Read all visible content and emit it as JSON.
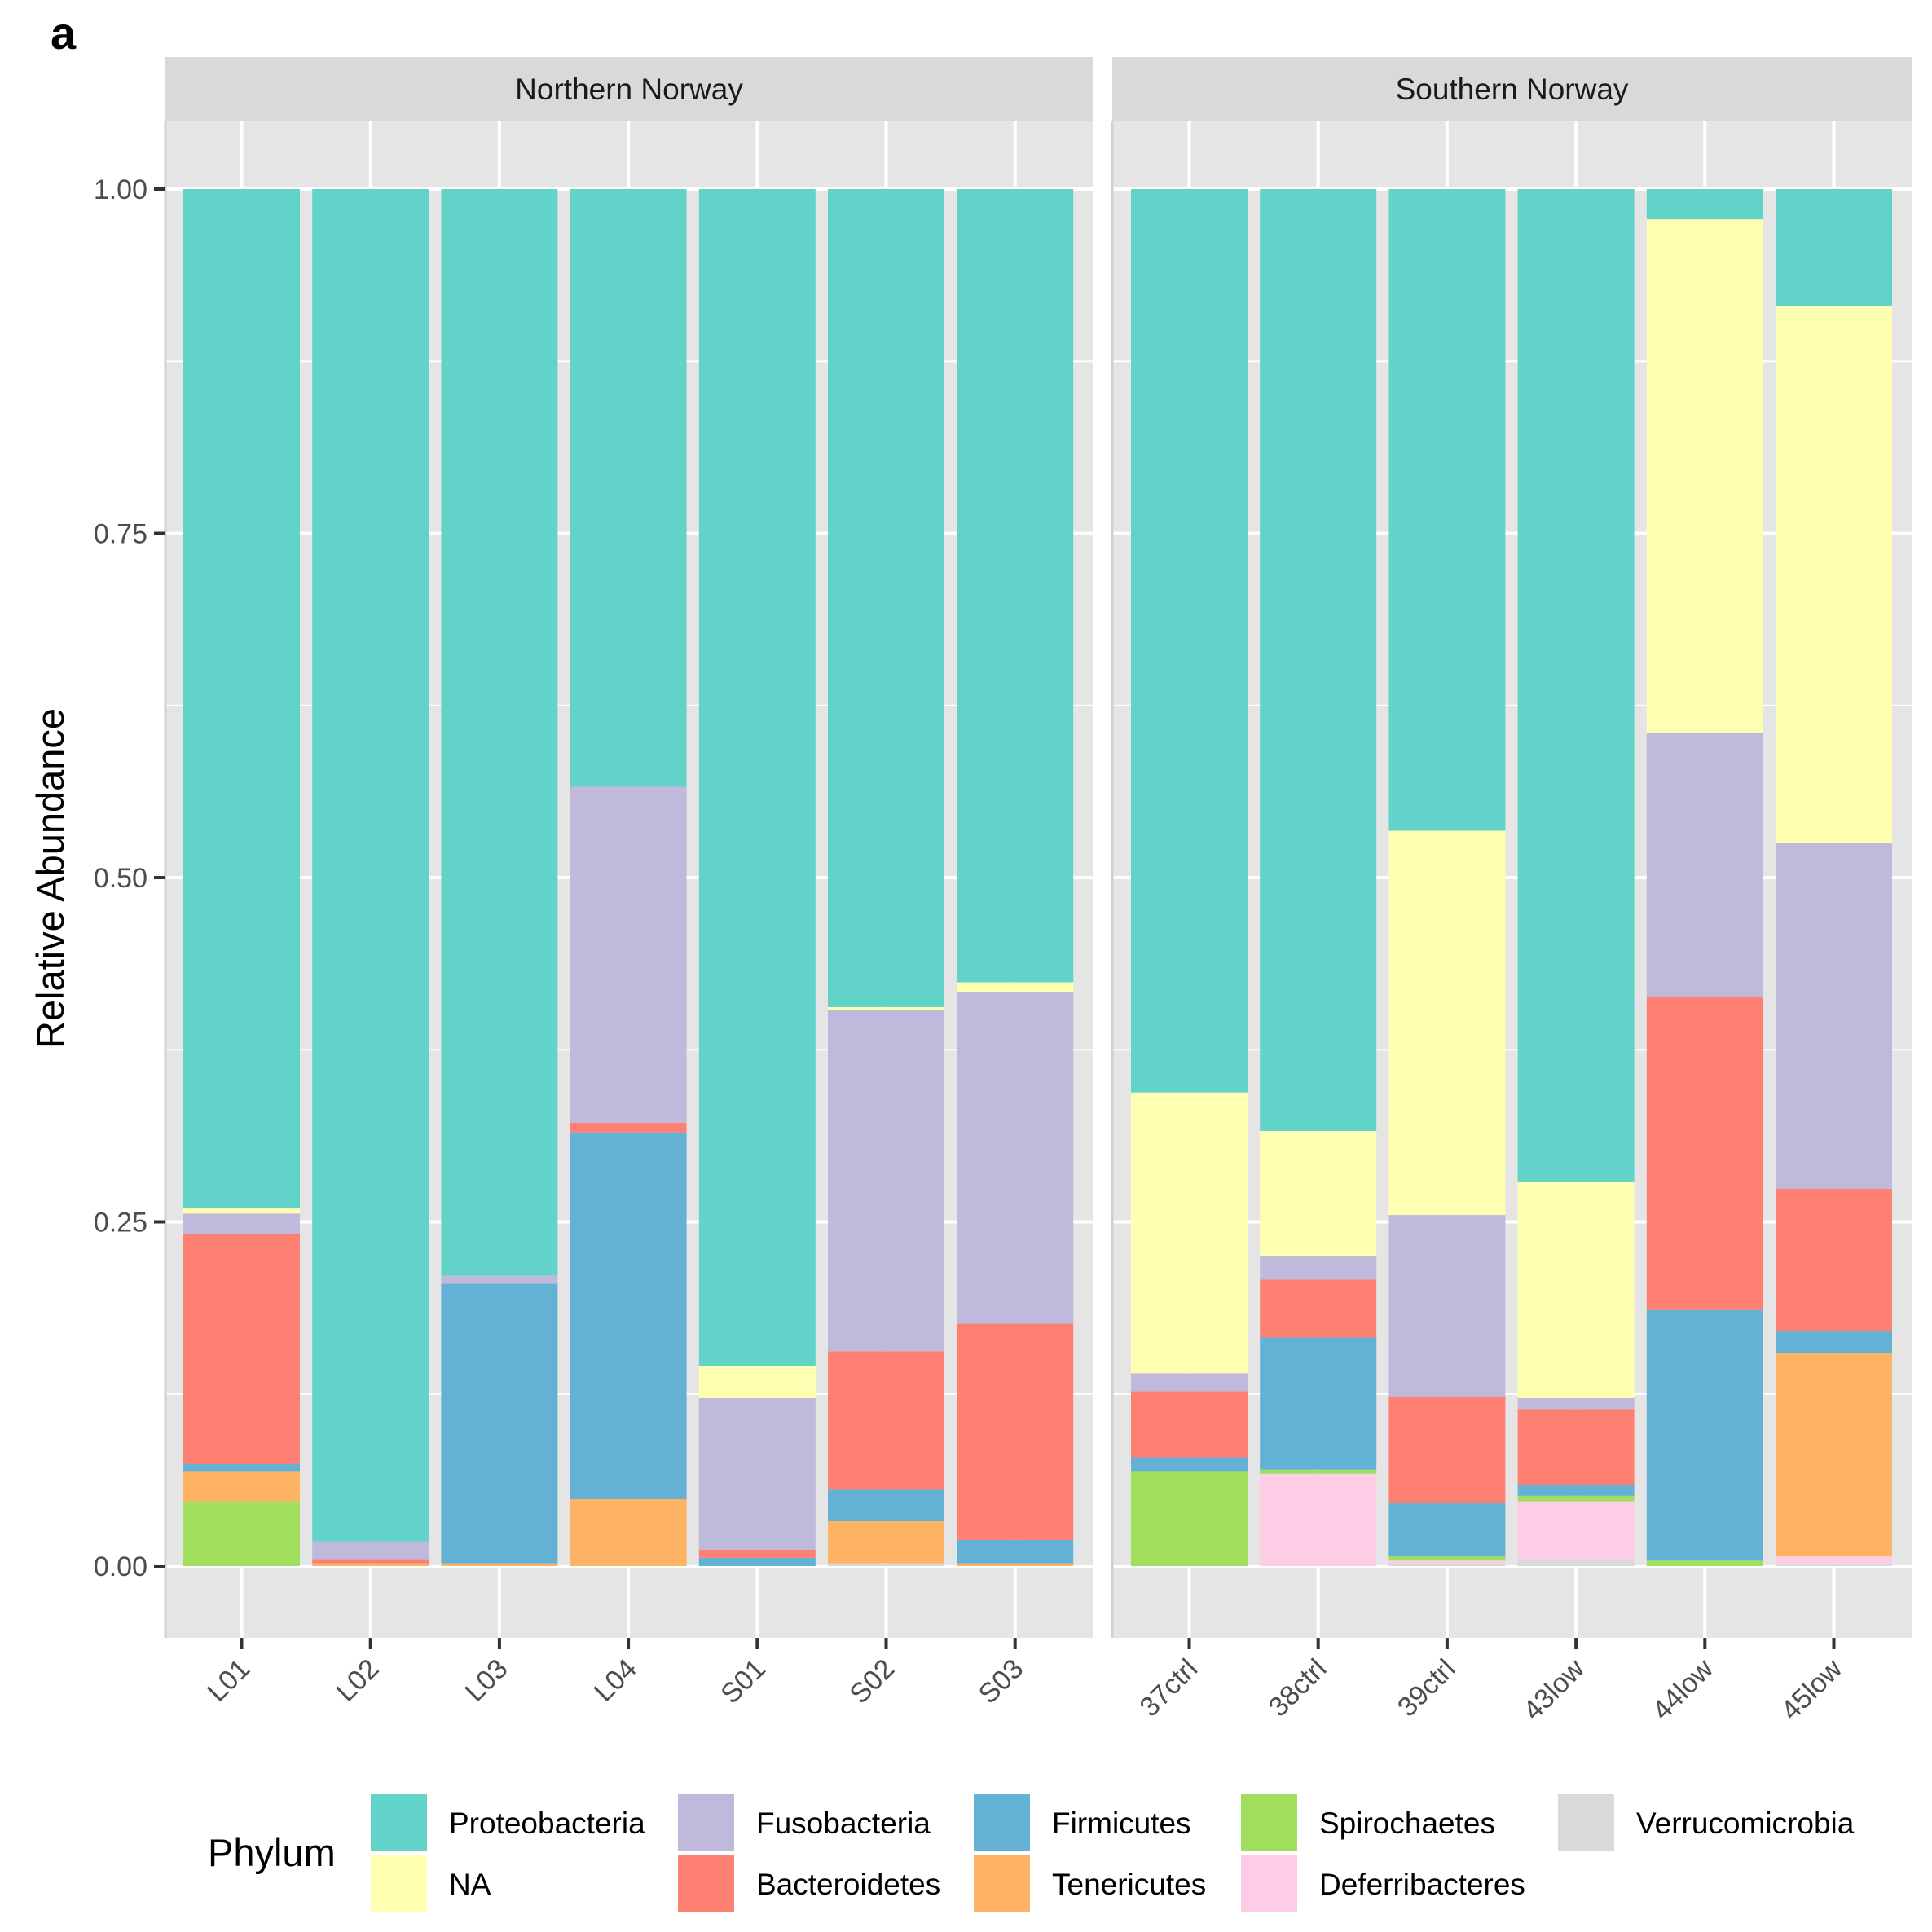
{
  "panel_label": "a",
  "chart_data": {
    "type": "bar",
    "stacked": true,
    "ylabel": "Relative Abundance",
    "xlabel": "",
    "ylim": [
      0,
      1
    ],
    "y_ticks": [
      "0.00",
      "0.25",
      "0.50",
      "0.75",
      "1.00"
    ],
    "legend_title": "Phylum",
    "legend_position": "bottom",
    "phyla": [
      {
        "name": "Proteobacteria",
        "color": "#61d3c8"
      },
      {
        "name": "NA",
        "color": "#ffffb2"
      },
      {
        "name": "Fusobacteria",
        "color": "#bfbadb"
      },
      {
        "name": "Bacteroidetes",
        "color": "#fe8072"
      },
      {
        "name": "Firmicutes",
        "color": "#63b1d4"
      },
      {
        "name": "Tenericutes",
        "color": "#feb263"
      },
      {
        "name": "Spirochaetes",
        "color": "#a0df5e"
      },
      {
        "name": "Deferribacteres",
        "color": "#fdcde5"
      },
      {
        "name": "Verrucomicrobia",
        "color": "#d9d9d9"
      }
    ],
    "stack_order_bottom_up": [
      "Verrucomicrobia",
      "Deferribacteres",
      "Spirochaetes",
      "Tenericutes",
      "Firmicutes",
      "Bacteroidetes",
      "Fusobacteria",
      "NA",
      "Proteobacteria"
    ],
    "facets": [
      {
        "title": "Northern Norway",
        "samples": [
          {
            "name": "L01",
            "values": {
              "Verrucomicrobia": 0.0,
              "Deferribacteres": 0.0,
              "Spirochaetes": 0.047,
              "Tenericutes": 0.022,
              "Firmicutes": 0.005,
              "Bacteroidetes": 0.167,
              "Fusobacteria": 0.015,
              "NA": 0.004,
              "Proteobacteria": 0.74
            }
          },
          {
            "name": "L02",
            "values": {
              "Verrucomicrobia": 0.0,
              "Deferribacteres": 0.0,
              "Spirochaetes": 0.0,
              "Tenericutes": 0.002,
              "Firmicutes": 0.0,
              "Bacteroidetes": 0.003,
              "Fusobacteria": 0.013,
              "NA": 0.0,
              "Proteobacteria": 0.982
            }
          },
          {
            "name": "L03",
            "values": {
              "Verrucomicrobia": 0.0,
              "Deferribacteres": 0.0,
              "Spirochaetes": 0.0,
              "Tenericutes": 0.002,
              "Firmicutes": 0.203,
              "Bacteroidetes": 0.0,
              "Fusobacteria": 0.006,
              "NA": 0.0,
              "Proteobacteria": 0.789
            }
          },
          {
            "name": "L04",
            "values": {
              "Verrucomicrobia": 0.0,
              "Deferribacteres": 0.0,
              "Spirochaetes": 0.0,
              "Tenericutes": 0.049,
              "Firmicutes": 0.266,
              "Bacteroidetes": 0.007,
              "Fusobacteria": 0.244,
              "NA": 0.0,
              "Proteobacteria": 0.434
            }
          },
          {
            "name": "S01",
            "values": {
              "Verrucomicrobia": 0.0,
              "Deferribacteres": 0.0,
              "Spirochaetes": 0.0,
              "Tenericutes": 0.0,
              "Firmicutes": 0.006,
              "Bacteroidetes": 0.006,
              "Fusobacteria": 0.11,
              "NA": 0.023,
              "Proteobacteria": 0.855
            }
          },
          {
            "name": "S02",
            "values": {
              "Verrucomicrobia": 0.002,
              "Deferribacteres": 0.0,
              "Spirochaetes": 0.0,
              "Tenericutes": 0.031,
              "Firmicutes": 0.023,
              "Bacteroidetes": 0.1,
              "Fusobacteria": 0.248,
              "NA": 0.002,
              "Proteobacteria": 0.594
            }
          },
          {
            "name": "S03",
            "values": {
              "Verrucomicrobia": 0.0,
              "Deferribacteres": 0.0,
              "Spirochaetes": 0.0,
              "Tenericutes": 0.002,
              "Firmicutes": 0.017,
              "Bacteroidetes": 0.157,
              "Fusobacteria": 0.241,
              "NA": 0.007,
              "Proteobacteria": 0.576
            }
          }
        ]
      },
      {
        "title": "Southern Norway",
        "samples": [
          {
            "name": "37ctrl",
            "values": {
              "Verrucomicrobia": 0.0,
              "Deferribacteres": 0.0,
              "Spirochaetes": 0.069,
              "Tenericutes": 0.0,
              "Firmicutes": 0.01,
              "Bacteroidetes": 0.048,
              "Fusobacteria": 0.013,
              "NA": 0.204,
              "Proteobacteria": 0.656
            }
          },
          {
            "name": "38ctrl",
            "values": {
              "Verrucomicrobia": 0.0,
              "Deferribacteres": 0.067,
              "Spirochaetes": 0.003,
              "Tenericutes": 0.0,
              "Firmicutes": 0.096,
              "Bacteroidetes": 0.042,
              "Fusobacteria": 0.017,
              "NA": 0.091,
              "Proteobacteria": 0.684
            }
          },
          {
            "name": "39ctrl",
            "values": {
              "Verrucomicrobia": 0.002,
              "Deferribacteres": 0.002,
              "Spirochaetes": 0.003,
              "Tenericutes": 0.0,
              "Firmicutes": 0.039,
              "Bacteroidetes": 0.077,
              "Fusobacteria": 0.132,
              "NA": 0.279,
              "Proteobacteria": 0.466
            }
          },
          {
            "name": "43low",
            "values": {
              "Verrucomicrobia": 0.005,
              "Deferribacteres": 0.042,
              "Spirochaetes": 0.004,
              "Tenericutes": 0.0,
              "Firmicutes": 0.008,
              "Bacteroidetes": 0.055,
              "Fusobacteria": 0.008,
              "NA": 0.157,
              "Proteobacteria": 0.721
            }
          },
          {
            "name": "44low",
            "values": {
              "Verrucomicrobia": 0.0,
              "Deferribacteres": 0.0,
              "Spirochaetes": 0.004,
              "Tenericutes": 0.0,
              "Firmicutes": 0.182,
              "Bacteroidetes": 0.227,
              "Fusobacteria": 0.192,
              "NA": 0.373,
              "Proteobacteria": 0.022
            }
          },
          {
            "name": "45low",
            "values": {
              "Verrucomicrobia": 0.002,
              "Deferribacteres": 0.005,
              "Spirochaetes": 0.0,
              "Tenericutes": 0.148,
              "Firmicutes": 0.016,
              "Bacteroidetes": 0.103,
              "Fusobacteria": 0.251,
              "NA": 0.39,
              "Proteobacteria": 0.085
            }
          }
        ]
      }
    ]
  }
}
